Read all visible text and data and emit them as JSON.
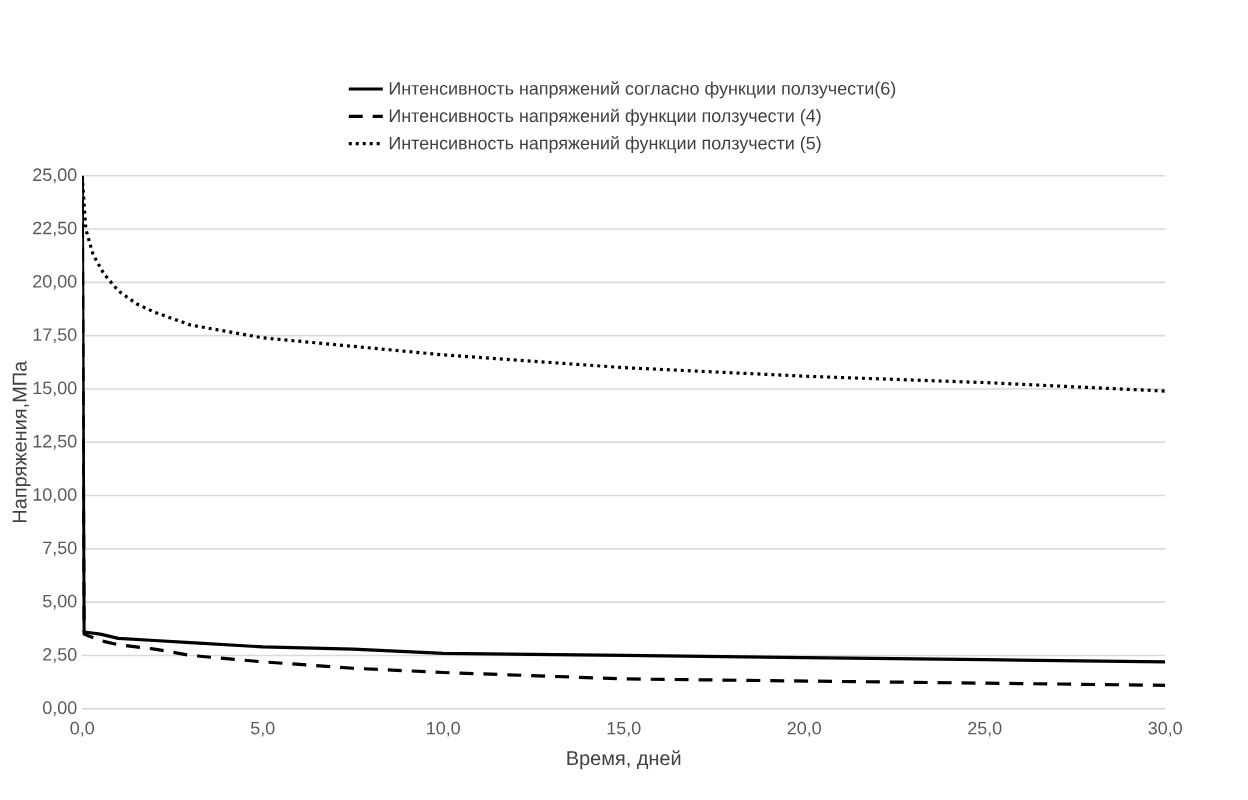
{
  "chart_data": {
    "type": "line",
    "xlabel": "Время, дней",
    "ylabel": "Напряжения,МПа",
    "xlim": [
      0,
      30
    ],
    "ylim": [
      0,
      25
    ],
    "grid": "y",
    "legend": "top",
    "xticks": [
      {
        "value": 0,
        "label": "0,0"
      },
      {
        "value": 5,
        "label": "5,0"
      },
      {
        "value": 10,
        "label": "10,0"
      },
      {
        "value": 15,
        "label": "15,0"
      },
      {
        "value": 20,
        "label": "20,0"
      },
      {
        "value": 25,
        "label": "25,0"
      },
      {
        "value": 30,
        "label": "30,0"
      }
    ],
    "yticks": [
      {
        "value": 0,
        "label": "0,00"
      },
      {
        "value": 2.5,
        "label": "2,50"
      },
      {
        "value": 5,
        "label": "5,00"
      },
      {
        "value": 7.5,
        "label": "7,50"
      },
      {
        "value": 10,
        "label": "10,00"
      },
      {
        "value": 12.5,
        "label": "12,50"
      },
      {
        "value": 15,
        "label": "15,00"
      },
      {
        "value": 17.5,
        "label": "17,50"
      },
      {
        "value": 20,
        "label": "20,00"
      },
      {
        "value": 22.5,
        "label": "22,50"
      },
      {
        "value": 25,
        "label": "25,00"
      }
    ],
    "series": [
      {
        "name": "Интенсивность напряжений  согласно функции ползучести(6)",
        "color": "#000000",
        "line_style": "solid",
        "x": [
          0,
          0.05,
          0.5,
          1,
          2,
          3,
          5,
          7.5,
          10,
          15,
          20,
          25,
          30
        ],
        "values": [
          25,
          3.6,
          3.5,
          3.3,
          3.2,
          3.1,
          2.9,
          2.8,
          2.6,
          2.5,
          2.4,
          2.3,
          2.2
        ]
      },
      {
        "name": "Интенсивность напряжений функции ползучести (4)",
        "color": "#000000",
        "line_style": "dashed",
        "x": [
          0,
          0.05,
          0.5,
          1,
          2,
          3,
          5,
          7.5,
          10,
          15,
          20,
          25,
          30
        ],
        "values": [
          25,
          3.5,
          3.2,
          3.0,
          2.8,
          2.5,
          2.2,
          1.9,
          1.7,
          1.4,
          1.3,
          1.2,
          1.1
        ]
      },
      {
        "name": "Интенсивность напряжений функции ползучести (5)",
        "color": "#000000",
        "line_style": "dotted",
        "x": [
          0,
          0.1,
          0.3,
          0.6,
          1,
          1.5,
          2,
          3,
          4,
          5,
          7.5,
          10,
          15,
          20,
          25,
          30
        ],
        "values": [
          25,
          22.5,
          21.3,
          20.4,
          19.6,
          19.0,
          18.6,
          18.0,
          17.7,
          17.4,
          17.0,
          16.6,
          16.0,
          15.6,
          15.3,
          14.9
        ]
      }
    ]
  }
}
